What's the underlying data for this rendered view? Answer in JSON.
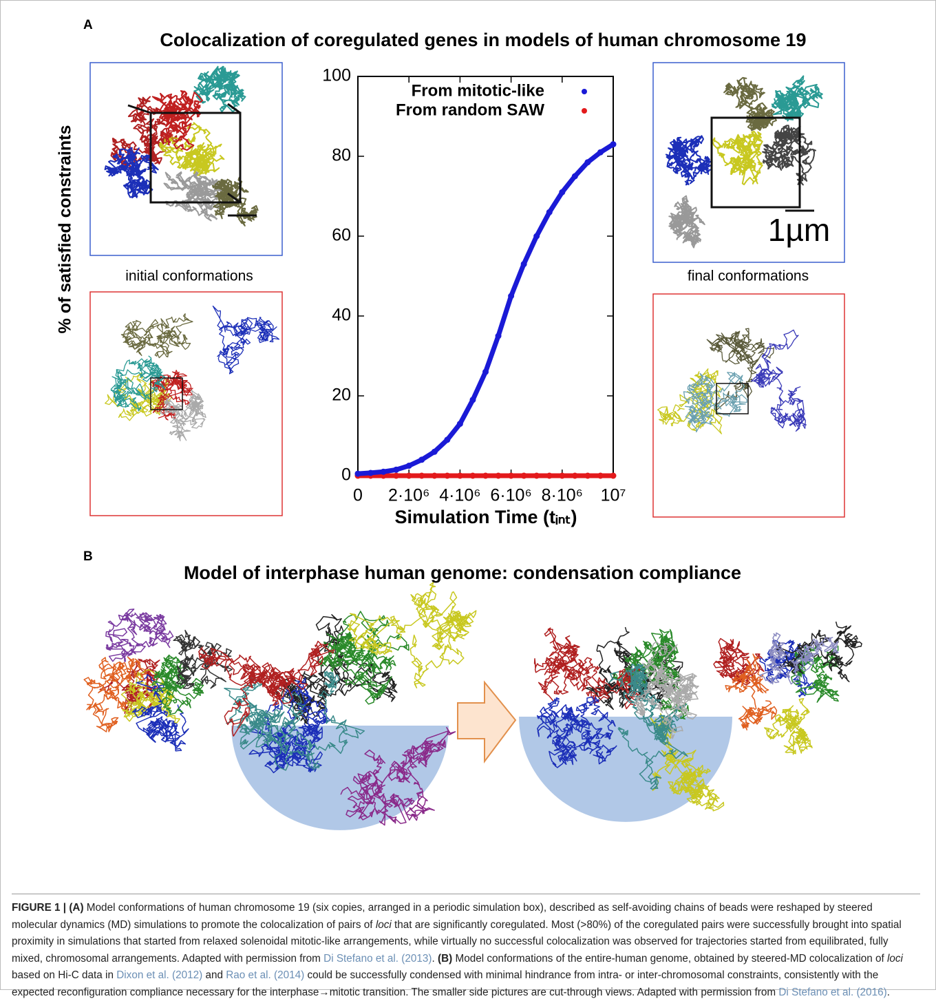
{
  "panel_a": {
    "label": "A",
    "title": "Colocalization of coregulated genes in models of human chromosome 19",
    "left_label": "initial conformations",
    "right_label": "final conformations",
    "scale_label": "1µm"
  },
  "chart_data": {
    "type": "scatter",
    "x_label": "Simulation Time (tᵢₙₜ)",
    "y_label": "% of satisfied constraints",
    "x": [
      0,
      500000,
      1000000,
      1500000,
      2000000,
      2500000,
      3000000,
      3500000,
      4000000,
      4500000,
      5000000,
      5500000,
      6000000,
      6500000,
      7000000,
      7500000,
      8000000,
      8500000,
      9000000,
      9500000,
      10000000
    ],
    "series": [
      {
        "name": "From mitotic-like",
        "color": "#1a1ad6",
        "values": [
          0.5,
          0.7,
          1,
          1.5,
          2.5,
          4,
          6,
          9,
          13,
          19,
          26,
          35,
          45,
          53,
          60,
          66,
          71,
          75,
          78.5,
          81,
          83
        ]
      },
      {
        "name": "From random SAW",
        "color": "#e31a1c",
        "values": [
          0,
          0,
          0,
          0,
          0,
          0,
          0,
          0,
          0,
          0,
          0,
          0,
          0,
          0,
          0,
          0,
          0,
          0,
          0,
          0,
          0
        ]
      }
    ],
    "xlim": [
      0,
      10000000
    ],
    "ylim": [
      0,
      100
    ],
    "xticks": [
      0,
      {
        "value": 2000000,
        "label": "2·10⁶"
      },
      {
        "value": 4000000,
        "label": "4·10⁶"
      },
      {
        "value": 6000000,
        "label": "6·10⁶"
      },
      {
        "value": 8000000,
        "label": "8·10⁶"
      },
      {
        "value": 10000000,
        "label": "10⁷"
      }
    ],
    "yticks": [
      0,
      20,
      40,
      60,
      80,
      100
    ],
    "legend": "top-left",
    "grid": false
  },
  "panel_b": {
    "label": "B",
    "title": "Model of interphase human genome: condensation compliance"
  },
  "caption": {
    "parts": [
      "FIGURE 1 | (A)",
      " Model conformations of human chromosome 19 (six copies, arranged in a periodic simulation box), described as self-avoiding chains of beads were reshaped by steered molecular dynamics (MD) simulations to promote the colocalization of pairs of ",
      "loci",
      " that are significantly coregulated. Most (>80%) of the coregulated pairs were successfully brought into spatial proximity in simulations that started from relaxed solenoidal mitotic-like arrangements, while virtually no successful colocalization was observed for trajectories started from equilibrated, fully mixed, chromosomal arrangements. Adapted with permission from ",
      "Di Stefano et al. (2013)",
      ". ",
      "(B)",
      " Model conformations of the entire-human genome, obtained by steered-MD colocalization of ",
      "loci",
      " based on Hi-C data in ",
      "Dixon et al. (2012)",
      " and ",
      "Rao et al. (2014)",
      " could be successfully condensed with minimal hindrance from intra- or inter-chromosomal constraints, consistently with the expected reconfiguration compliance necessary for the interphase→mitotic transition. The smaller side pictures are cut-through views. Adapted with permission from ",
      "Di Stefano et al. (2016)",
      "."
    ]
  }
}
